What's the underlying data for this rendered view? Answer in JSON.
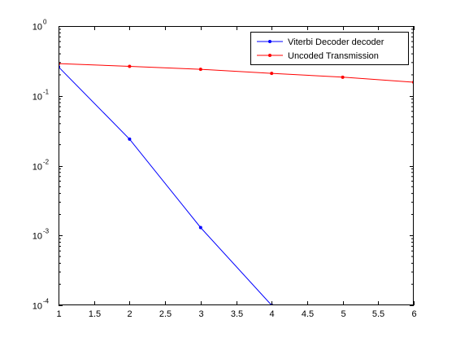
{
  "chart_data": {
    "type": "line",
    "title": "",
    "xlabel": "",
    "ylabel": "",
    "xlim": [
      1,
      6
    ],
    "ylim": [
      0.0001,
      1
    ],
    "yscale": "log",
    "grid": false,
    "legend_position": "top-right",
    "x_ticks": [
      "1",
      "1.5",
      "2",
      "2.5",
      "3",
      "3.5",
      "4",
      "4.5",
      "5",
      "5.5",
      "6"
    ],
    "y_ticks": [
      {
        "base": "10",
        "exp": "-4",
        "value": 0.0001
      },
      {
        "base": "10",
        "exp": "-3",
        "value": 0.001
      },
      {
        "base": "10",
        "exp": "-2",
        "value": 0.01
      },
      {
        "base": "10",
        "exp": "-1",
        "value": 0.1
      },
      {
        "base": "10",
        "exp": "0",
        "value": 1
      }
    ],
    "series": [
      {
        "name": "Viterbi Decoder decoder",
        "color": "#0000ff",
        "marker": "dot",
        "x": [
          1,
          2,
          3,
          4
        ],
        "y": [
          0.26,
          0.024,
          0.0013,
          0.0001
        ]
      },
      {
        "name": "Uncoded Transmission",
        "color": "#ff0000",
        "marker": "dot",
        "x": [
          1,
          2,
          3,
          4,
          5,
          6
        ],
        "y": [
          0.29,
          0.265,
          0.24,
          0.21,
          0.185,
          0.157
        ]
      }
    ]
  }
}
